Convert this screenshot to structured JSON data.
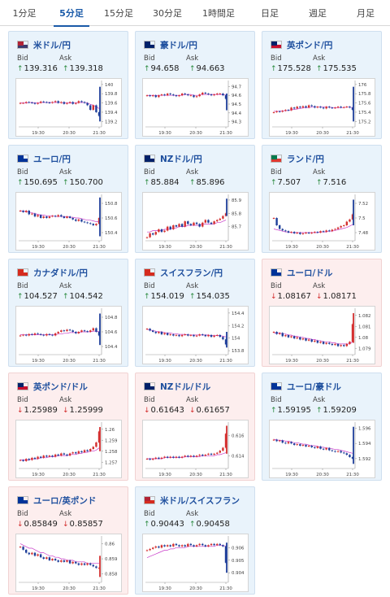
{
  "tabs": [
    {
      "label": "1分足",
      "active": false
    },
    {
      "label": "5分足",
      "active": true
    },
    {
      "label": "15分足",
      "active": false
    },
    {
      "label": "30分足",
      "active": false
    },
    {
      "label": "1時間足",
      "active": false
    },
    {
      "label": "日足",
      "active": false
    },
    {
      "label": "週足",
      "active": false
    },
    {
      "label": "月足",
      "active": false
    }
  ],
  "labels": {
    "bid": "Bid",
    "ask": "Ask"
  },
  "x_ticks": [
    "19:30",
    "20:30",
    "21:30"
  ],
  "colors": {
    "up_arrow": "#2a8a3e",
    "down_arrow": "#d22b2b",
    "up_candle": "#d43030",
    "down_candle": "#1f3f9a",
    "ma_line": "#c93cc9"
  },
  "cards": [
    {
      "pair": "米ドル/円",
      "flag": [
        "#b22234",
        "#3c3b6e"
      ],
      "dir": "up",
      "bid": "139.316",
      "ask": "139.318",
      "y_ticks": [
        "140",
        "139.8",
        "139.6",
        "139.4",
        "139.2"
      ],
      "ylim": [
        139.1,
        140.05
      ],
      "series": [
        139.6,
        139.6,
        139.62,
        139.61,
        139.6,
        139.58,
        139.6,
        139.63,
        139.62,
        139.61,
        139.6,
        139.62,
        139.64,
        139.6,
        139.62,
        139.58,
        139.6,
        139.62,
        139.58,
        139.6,
        139.64,
        139.62,
        139.6,
        139.55,
        139.45,
        139.55,
        139.4,
        139.32
      ],
      "ma": [
        139.6,
        139.6,
        139.6,
        139.61,
        139.61,
        139.6,
        139.6,
        139.61,
        139.61,
        139.61,
        139.61,
        139.61,
        139.61,
        139.61,
        139.61,
        139.6,
        139.6,
        139.6,
        139.6,
        139.6,
        139.61,
        139.61,
        139.61,
        139.6,
        139.57,
        139.55,
        139.52,
        139.48
      ],
      "spike": [
        139.95,
        139.2
      ]
    },
    {
      "pair": "豪ドル/円",
      "flag": [
        "#012169",
        "#012169"
      ],
      "dir": "up",
      "bid": "94.658",
      "ask": "94.663",
      "y_ticks": [
        "94.7",
        "94.6",
        "94.5",
        "94.4",
        "94.3"
      ],
      "ylim": [
        94.25,
        94.75
      ],
      "series": [
        94.6,
        94.59,
        94.6,
        94.58,
        94.6,
        94.61,
        94.6,
        94.62,
        94.61,
        94.6,
        94.59,
        94.6,
        94.62,
        94.61,
        94.6,
        94.6,
        94.58,
        94.59,
        94.61,
        94.63,
        94.62,
        94.61,
        94.6,
        94.61,
        94.62,
        94.62,
        94.6,
        94.56
      ],
      "ma": [
        94.6,
        94.6,
        94.6,
        94.6,
        94.6,
        94.6,
        94.6,
        94.6,
        94.6,
        94.6,
        94.6,
        94.6,
        94.6,
        94.61,
        94.61,
        94.61,
        94.6,
        94.6,
        94.6,
        94.61,
        94.61,
        94.61,
        94.61,
        94.61,
        94.61,
        94.61,
        94.61,
        94.6
      ],
      "spike": [
        94.62,
        94.43
      ]
    },
    {
      "pair": "英ポンド/円",
      "flag": [
        "#012169",
        "#c8102e"
      ],
      "dir": "up",
      "bid": "175.528",
      "ask": "175.535",
      "y_ticks": [
        "176",
        "175.8",
        "175.6",
        "175.4",
        "175.2"
      ],
      "ylim": [
        175.1,
        176.05
      ],
      "series": [
        175.4,
        175.42,
        175.41,
        175.43,
        175.45,
        175.44,
        175.5,
        175.48,
        175.52,
        175.5,
        175.53,
        175.5,
        175.55,
        175.53,
        175.5,
        175.52,
        175.5,
        175.48,
        175.52,
        175.5,
        175.49,
        175.5,
        175.52,
        175.5,
        175.51,
        175.52,
        175.5,
        175.45
      ],
      "ma": [
        175.42,
        175.42,
        175.42,
        175.43,
        175.43,
        175.44,
        175.45,
        175.46,
        175.47,
        175.48,
        175.49,
        175.5,
        175.5,
        175.51,
        175.51,
        175.51,
        175.51,
        175.51,
        175.51,
        175.51,
        175.5,
        175.5,
        175.5,
        175.5,
        175.5,
        175.51,
        175.51,
        175.5
      ],
      "spike": [
        175.95,
        175.2
      ]
    },
    {
      "pair": "ユーロ/円",
      "flag": [
        "#003399",
        "#003399"
      ],
      "dir": "up",
      "bid": "150.695",
      "ask": "150.700",
      "y_ticks": [
        "150.8",
        "150.6",
        "150.4"
      ],
      "ylim": [
        150.3,
        150.9
      ],
      "series": [
        150.7,
        150.68,
        150.7,
        150.65,
        150.66,
        150.62,
        150.64,
        150.6,
        150.62,
        150.6,
        150.62,
        150.63,
        150.62,
        150.64,
        150.62,
        150.6,
        150.62,
        150.6,
        150.58,
        150.56,
        150.58,
        150.55,
        150.54,
        150.53,
        150.52,
        150.5,
        150.52,
        150.6
      ],
      "ma": [
        150.7,
        150.69,
        150.69,
        150.68,
        150.67,
        150.66,
        150.65,
        150.64,
        150.64,
        150.63,
        150.63,
        150.63,
        150.62,
        150.62,
        150.62,
        150.62,
        150.62,
        150.61,
        150.61,
        150.6,
        150.6,
        150.59,
        150.58,
        150.57,
        150.57,
        150.56,
        150.55,
        150.55
      ],
      "spike": [
        150.88,
        150.35
      ]
    },
    {
      "pair": "NZドル/円",
      "flag": [
        "#012169",
        "#012169"
      ],
      "dir": "up",
      "bid": "85.884",
      "ask": "85.896",
      "y_ticks": [
        "85.9",
        "85.8",
        "85.7"
      ],
      "ylim": [
        85.6,
        85.93
      ],
      "series": [
        85.62,
        85.65,
        85.64,
        85.66,
        85.68,
        85.66,
        85.67,
        85.7,
        85.68,
        85.71,
        85.7,
        85.72,
        85.7,
        85.74,
        85.72,
        85.71,
        85.73,
        85.72,
        85.7,
        85.73,
        85.75,
        85.73,
        85.72,
        85.74,
        85.75,
        85.76,
        85.78,
        85.8
      ],
      "ma": [
        85.66,
        85.66,
        85.67,
        85.67,
        85.67,
        85.67,
        85.68,
        85.68,
        85.68,
        85.69,
        85.69,
        85.7,
        85.7,
        85.7,
        85.71,
        85.71,
        85.71,
        85.71,
        85.71,
        85.72,
        85.72,
        85.72,
        85.72,
        85.72,
        85.73,
        85.73,
        85.74,
        85.75
      ],
      "spike": [
        85.91,
        85.78
      ]
    },
    {
      "pair": "ランド/円",
      "flag": [
        "#007a4d",
        "#de3831"
      ],
      "dir": "up",
      "bid": "7.507",
      "ask": "7.516",
      "y_ticks": [
        "7.52",
        "7.5",
        "7.48"
      ],
      "ylim": [
        7.47,
        7.53
      ],
      "series": [
        7.5,
        7.49,
        7.485,
        7.483,
        7.482,
        7.48,
        7.481,
        7.479,
        7.48,
        7.478,
        7.479,
        7.48,
        7.479,
        7.48,
        7.481,
        7.48,
        7.482,
        7.481,
        7.483,
        7.482,
        7.484,
        7.485,
        7.487,
        7.489,
        7.49,
        7.495,
        7.498,
        7.505
      ],
      "ma": [
        7.485,
        7.484,
        7.483,
        7.482,
        7.481,
        7.481,
        7.48,
        7.48,
        7.48,
        7.48,
        7.48,
        7.48,
        7.48,
        7.48,
        7.48,
        7.48,
        7.481,
        7.481,
        7.481,
        7.482,
        7.482,
        7.483,
        7.484,
        7.485,
        7.486,
        7.487,
        7.489,
        7.491
      ],
      "spike": [
        7.525,
        7.49
      ]
    },
    {
      "pair": "カナダドル/円",
      "flag": [
        "#d52b1e",
        "#d52b1e"
      ],
      "dir": "up",
      "bid": "104.527",
      "ask": "104.542",
      "y_ticks": [
        "104.8",
        "104.6",
        "104.4"
      ],
      "ylim": [
        104.3,
        104.9
      ],
      "series": [
        104.55,
        104.56,
        104.55,
        104.57,
        104.56,
        104.58,
        104.57,
        104.56,
        104.55,
        104.57,
        104.56,
        104.55,
        104.58,
        104.6,
        104.62,
        104.61,
        104.63,
        104.62,
        104.6,
        104.58,
        104.6,
        104.62,
        104.61,
        104.6,
        104.62,
        104.65,
        104.6,
        104.55
      ],
      "ma": [
        104.56,
        104.56,
        104.56,
        104.56,
        104.56,
        104.56,
        104.56,
        104.56,
        104.56,
        104.56,
        104.56,
        104.56,
        104.56,
        104.57,
        104.57,
        104.58,
        104.58,
        104.59,
        104.59,
        104.59,
        104.59,
        104.6,
        104.6,
        104.6,
        104.6,
        104.61,
        104.61,
        104.6
      ],
      "spike": [
        104.85,
        104.42
      ]
    },
    {
      "pair": "スイスフラン/円",
      "flag": [
        "#d52b1e",
        "#d52b1e"
      ],
      "dir": "up",
      "bid": "154.019",
      "ask": "154.035",
      "y_ticks": [
        "154.4",
        "154.2",
        "154",
        "153.8"
      ],
      "ylim": [
        153.75,
        154.45
      ],
      "series": [
        154.15,
        154.12,
        154.1,
        154.08,
        154.1,
        154.06,
        154.08,
        154.05,
        154.06,
        154.04,
        154.05,
        154.03,
        154.05,
        154.06,
        154.04,
        154.05,
        154.03,
        154.04,
        154.06,
        154.05,
        154.03,
        154.05,
        154.02,
        154.04,
        154.05,
        154.02,
        153.98,
        153.9
      ],
      "ma": [
        154.14,
        154.13,
        154.12,
        154.11,
        154.1,
        154.1,
        154.09,
        154.08,
        154.08,
        154.07,
        154.07,
        154.06,
        154.06,
        154.06,
        154.05,
        154.05,
        154.05,
        154.05,
        154.05,
        154.05,
        154.05,
        154.05,
        154.04,
        154.04,
        154.04,
        154.04,
        154.03,
        154.02
      ],
      "spike": [
        154.1,
        153.85
      ]
    },
    {
      "pair": "ユーロ/ドル",
      "flag": [
        "#003399",
        "#003399"
      ],
      "dir": "down",
      "bid": "1.08167",
      "ask": "1.08171",
      "y_ticks": [
        "1.082",
        "1.081",
        "1.08",
        "1.079"
      ],
      "ylim": [
        1.0785,
        1.0825
      ],
      "series": [
        1.0805,
        1.0803,
        1.0804,
        1.0801,
        1.0802,
        1.08,
        1.0801,
        1.0799,
        1.08,
        1.0798,
        1.0799,
        1.0797,
        1.0798,
        1.0796,
        1.0797,
        1.0795,
        1.0796,
        1.0794,
        1.0795,
        1.0794,
        1.0793,
        1.0794,
        1.0792,
        1.0793,
        1.0792,
        1.0794,
        1.0796,
        1.0812
      ],
      "ma": [
        1.0804,
        1.0804,
        1.0804,
        1.0803,
        1.0803,
        1.0802,
        1.0802,
        1.0801,
        1.0801,
        1.08,
        1.08,
        1.0799,
        1.0799,
        1.0798,
        1.0798,
        1.0797,
        1.0797,
        1.0796,
        1.0796,
        1.0796,
        1.0795,
        1.0795,
        1.0794,
        1.0794,
        1.0794,
        1.0794,
        1.0794,
        1.0796
      ],
      "spike": [
        1.0822,
        1.0795
      ]
    },
    {
      "pair": "英ポンド/ドル",
      "flag": [
        "#012169",
        "#c8102e"
      ],
      "dir": "down",
      "bid": "1.25989",
      "ask": "1.25999",
      "y_ticks": [
        "1.26",
        "1.259",
        "1.258",
        "1.257"
      ],
      "ylim": [
        1.2565,
        1.2605
      ],
      "series": [
        1.2572,
        1.2571,
        1.2573,
        1.2572,
        1.2574,
        1.2573,
        1.2575,
        1.2574,
        1.2576,
        1.2575,
        1.2576,
        1.2575,
        1.2577,
        1.2576,
        1.2578,
        1.2577,
        1.2576,
        1.2578,
        1.2579,
        1.2578,
        1.258,
        1.2579,
        1.2581,
        1.258,
        1.2582,
        1.2584,
        1.2588,
        1.2598
      ],
      "ma": [
        1.2572,
        1.2572,
        1.2572,
        1.2572,
        1.2573,
        1.2573,
        1.2573,
        1.2574,
        1.2574,
        1.2574,
        1.2575,
        1.2575,
        1.2575,
        1.2576,
        1.2576,
        1.2576,
        1.2576,
        1.2577,
        1.2577,
        1.2577,
        1.2578,
        1.2578,
        1.2579,
        1.2579,
        1.258,
        1.258,
        1.2581,
        1.2583
      ],
      "spike": [
        1.2602,
        1.258
      ]
    },
    {
      "pair": "NZドル/ドル",
      "flag": [
        "#012169",
        "#012169"
      ],
      "dir": "down",
      "bid": "0.61643",
      "ask": "0.61657",
      "y_ticks": [
        "0.616",
        "0.614"
      ],
      "ylim": [
        0.6128,
        0.6172
      ],
      "series": [
        0.6137,
        0.6136,
        0.6137,
        0.6138,
        0.6137,
        0.6138,
        0.6139,
        0.6138,
        0.6139,
        0.6138,
        0.6139,
        0.6138,
        0.6139,
        0.614,
        0.6139,
        0.614,
        0.6139,
        0.614,
        0.6141,
        0.614,
        0.6141,
        0.6142,
        0.6141,
        0.6142,
        0.6143,
        0.6145,
        0.6148,
        0.6162
      ],
      "ma": [
        0.6137,
        0.6137,
        0.6137,
        0.6137,
        0.6137,
        0.6137,
        0.6138,
        0.6138,
        0.6138,
        0.6138,
        0.6138,
        0.6138,
        0.6138,
        0.6139,
        0.6139,
        0.6139,
        0.6139,
        0.6139,
        0.6139,
        0.614,
        0.614,
        0.614,
        0.614,
        0.614,
        0.6141,
        0.6141,
        0.6142,
        0.6143
      ],
      "spike": [
        0.617,
        0.6142
      ]
    },
    {
      "pair": "ユーロ/豪ドル",
      "flag": [
        "#003399",
        "#003399"
      ],
      "dir": "up",
      "bid": "1.59195",
      "ask": "1.59209",
      "y_ticks": [
        "1.596",
        "1.594",
        "1.592"
      ],
      "ylim": [
        1.5908,
        1.5966
      ],
      "series": [
        1.5945,
        1.5943,
        1.5944,
        1.5941,
        1.594,
        1.5942,
        1.594,
        1.5938,
        1.5939,
        1.5937,
        1.5938,
        1.5936,
        1.5937,
        1.5935,
        1.5934,
        1.5936,
        1.5933,
        1.5932,
        1.5934,
        1.5931,
        1.593,
        1.5929,
        1.593,
        1.5928,
        1.5927,
        1.5925,
        1.5922,
        1.592
      ],
      "ma": [
        1.5945,
        1.5945,
        1.5944,
        1.5944,
        1.5943,
        1.5943,
        1.5942,
        1.5941,
        1.5941,
        1.594,
        1.5939,
        1.5939,
        1.5938,
        1.5937,
        1.5937,
        1.5936,
        1.5935,
        1.5935,
        1.5934,
        1.5934,
        1.5933,
        1.5932,
        1.5932,
        1.5931,
        1.593,
        1.5929,
        1.5928,
        1.5927
      ],
      "spike": [
        1.5962,
        1.5913
      ]
    },
    {
      "pair": "ユーロ/英ポンド",
      "flag": [
        "#003399",
        "#003399"
      ],
      "dir": "down",
      "bid": "0.85849",
      "ask": "0.85857",
      "y_ticks": [
        "0.86",
        "0.859",
        "0.858"
      ],
      "ylim": [
        0.8575,
        0.8604
      ],
      "series": [
        0.8598,
        0.8596,
        0.8594,
        0.8593,
        0.8594,
        0.8592,
        0.8593,
        0.8591,
        0.859,
        0.8591,
        0.8589,
        0.859,
        0.8589,
        0.8588,
        0.8589,
        0.8588,
        0.8589,
        0.8587,
        0.8588,
        0.8587,
        0.8586,
        0.8587,
        0.8586,
        0.8587,
        0.8586,
        0.8585,
        0.8584,
        0.8584
      ],
      "ma": [
        0.86,
        0.8599,
        0.8598,
        0.8597,
        0.8597,
        0.8596,
        0.8595,
        0.8594,
        0.8594,
        0.8593,
        0.8592,
        0.8592,
        0.8591,
        0.8591,
        0.859,
        0.859,
        0.8589,
        0.8589,
        0.8589,
        0.8588,
        0.8588,
        0.8588,
        0.8588,
        0.8587,
        0.8587,
        0.8587,
        0.8587,
        0.8587
      ],
      "spike": [
        0.8592,
        0.8578
      ]
    },
    {
      "pair": "米ドル/スイスフラン",
      "flag": [
        "#b22234",
        "#d52b1e"
      ],
      "dir": "up",
      "bid": "0.90443",
      "ask": "0.90458",
      "y_ticks": [
        "0.906",
        "0.905",
        "0.904"
      ],
      "ylim": [
        0.9033,
        0.9068
      ],
      "series": [
        0.9058,
        0.9059,
        0.906,
        0.9061,
        0.906,
        0.9062,
        0.9061,
        0.9062,
        0.9061,
        0.9063,
        0.9062,
        0.9061,
        0.9062,
        0.9061,
        0.9063,
        0.9062,
        0.9061,
        0.9062,
        0.9063,
        0.9062,
        0.9061,
        0.9062,
        0.9063,
        0.9062,
        0.9063,
        0.9062,
        0.9061,
        0.9048
      ],
      "ma": [
        0.9052,
        0.9053,
        0.9054,
        0.9055,
        0.9056,
        0.9057,
        0.9058,
        0.9058,
        0.9059,
        0.9059,
        0.906,
        0.906,
        0.906,
        0.906,
        0.9061,
        0.9061,
        0.9061,
        0.9061,
        0.9061,
        0.9061,
        0.9061,
        0.9061,
        0.9061,
        0.9061,
        0.9062,
        0.9062,
        0.9062,
        0.9061
      ],
      "spike": [
        0.9064,
        0.904
      ]
    }
  ]
}
